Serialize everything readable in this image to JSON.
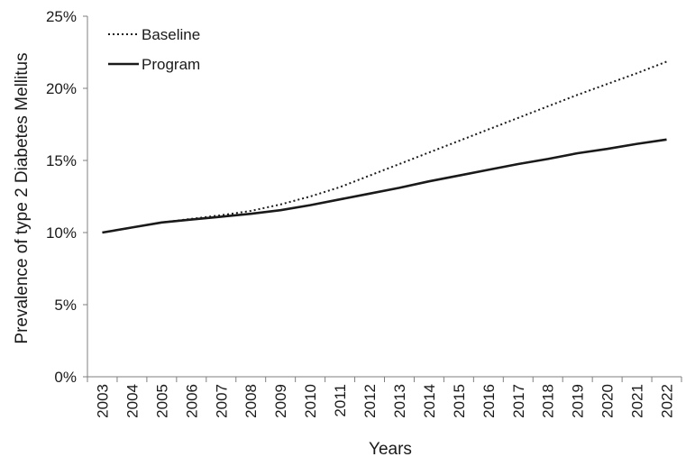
{
  "chart_data": {
    "type": "line",
    "title": "",
    "xlabel": "Years",
    "ylabel": "Prevalence of type 2 Diabetes Mellitus",
    "categories": [
      "2003",
      "2004",
      "2005",
      "2006",
      "2007",
      "2008",
      "2009",
      "2010",
      "2011",
      "2012",
      "2013",
      "2014",
      "2015",
      "2016",
      "2017",
      "2018",
      "2019",
      "2020",
      "2021",
      "2022"
    ],
    "ylim": [
      0,
      25
    ],
    "yticks": [
      "0%",
      "5%",
      "10%",
      "15%",
      "20%",
      "25%"
    ],
    "ytick_values": [
      0,
      5,
      10,
      15,
      20,
      25
    ],
    "grid": false,
    "legend_position": "top-left",
    "series": [
      {
        "name": "Baseline",
        "style": "dotted",
        "color": "#1a1a1a",
        "values": [
          10.0,
          10.35,
          10.7,
          10.95,
          11.2,
          11.5,
          11.95,
          12.5,
          13.15,
          13.95,
          14.75,
          15.55,
          16.35,
          17.15,
          17.95,
          18.75,
          19.55,
          20.3,
          21.05,
          21.85
        ]
      },
      {
        "name": "Program",
        "style": "solid",
        "color": "#1a1a1a",
        "values": [
          10.0,
          10.35,
          10.7,
          10.9,
          11.1,
          11.3,
          11.55,
          11.9,
          12.3,
          12.7,
          13.1,
          13.55,
          13.95,
          14.35,
          14.75,
          15.1,
          15.5,
          15.8,
          16.15,
          16.45
        ]
      }
    ]
  }
}
